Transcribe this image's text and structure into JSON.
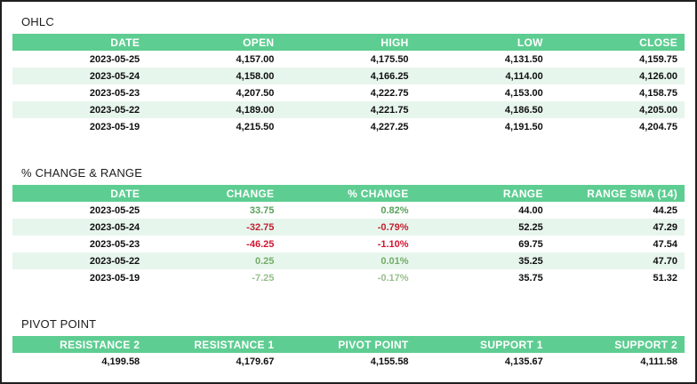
{
  "colors": {
    "header_bg": "#5ecd92",
    "header_text": "#ffffff",
    "row_alt_bg": "#e7f6ed",
    "row_bg": "#ffffff",
    "cell_text": "#0f0f0f",
    "title_text": "#1c1c1c",
    "page_border": "#1f1f1f",
    "positive_text": "#55a25a",
    "negative_text": "#d01630"
  },
  "sections": [
    {
      "id": "ohlc",
      "title": "OHLC",
      "columns": [
        "DATE",
        "OPEN",
        "HIGH",
        "LOW",
        "CLOSE"
      ],
      "rows": [
        {
          "cells": [
            {
              "text": "2023-05-25"
            },
            {
              "text": "4,157.00"
            },
            {
              "text": "4,175.50"
            },
            {
              "text": "4,131.50"
            },
            {
              "text": "4,159.75"
            }
          ]
        },
        {
          "cells": [
            {
              "text": "2023-05-24"
            },
            {
              "text": "4,158.00"
            },
            {
              "text": "4,166.25"
            },
            {
              "text": "4,114.00"
            },
            {
              "text": "4,126.00"
            }
          ]
        },
        {
          "cells": [
            {
              "text": "2023-05-23"
            },
            {
              "text": "4,207.50"
            },
            {
              "text": "4,222.75"
            },
            {
              "text": "4,153.00"
            },
            {
              "text": "4,158.75"
            }
          ]
        },
        {
          "cells": [
            {
              "text": "2023-05-22"
            },
            {
              "text": "4,189.00"
            },
            {
              "text": "4,221.75"
            },
            {
              "text": "4,186.50"
            },
            {
              "text": "4,205.00"
            }
          ]
        },
        {
          "cells": [
            {
              "text": "2023-05-19"
            },
            {
              "text": "4,215.50"
            },
            {
              "text": "4,227.25"
            },
            {
              "text": "4,191.50"
            },
            {
              "text": "4,204.75"
            }
          ]
        }
      ]
    },
    {
      "id": "change-range",
      "title": "% CHANGE & RANGE",
      "columns": [
        "DATE",
        "CHANGE",
        "% CHANGE",
        "RANGE",
        "RANGE SMA (14)"
      ],
      "rows": [
        {
          "cells": [
            {
              "text": "2023-05-25"
            },
            {
              "text": "33.75",
              "color": "#55a25a"
            },
            {
              "text": "0.82%",
              "color": "#55a25a"
            },
            {
              "text": "44.00"
            },
            {
              "text": "44.25"
            }
          ]
        },
        {
          "cells": [
            {
              "text": "2023-05-24"
            },
            {
              "text": "-32.75",
              "color": "#c32030"
            },
            {
              "text": "-0.79%",
              "color": "#c32030"
            },
            {
              "text": "52.25"
            },
            {
              "text": "47.29"
            }
          ]
        },
        {
          "cells": [
            {
              "text": "2023-05-23"
            },
            {
              "text": "-46.25",
              "color": "#d01630"
            },
            {
              "text": "-1.10%",
              "color": "#d01630"
            },
            {
              "text": "69.75"
            },
            {
              "text": "47.54"
            }
          ]
        },
        {
          "cells": [
            {
              "text": "2023-05-22"
            },
            {
              "text": "0.25",
              "color": "#72ad68"
            },
            {
              "text": "0.01%",
              "color": "#72ad68"
            },
            {
              "text": "35.25"
            },
            {
              "text": "47.70"
            }
          ]
        },
        {
          "cells": [
            {
              "text": "2023-05-19"
            },
            {
              "text": "-7.25",
              "color": "#97bf8c"
            },
            {
              "text": "-0.17%",
              "color": "#97bf8c"
            },
            {
              "text": "35.75"
            },
            {
              "text": "51.32"
            }
          ]
        }
      ]
    },
    {
      "id": "pivot-point",
      "title": "PIVOT POINT",
      "columns": [
        "RESISTANCE 2",
        "RESISTANCE 1",
        "PIVOT POINT",
        "SUPPORT 1",
        "SUPPORT 2"
      ],
      "rows": [
        {
          "cells": [
            {
              "text": "4,199.58"
            },
            {
              "text": "4,179.67"
            },
            {
              "text": "4,155.58"
            },
            {
              "text": "4,135.67"
            },
            {
              "text": "4,111.58"
            }
          ]
        }
      ]
    }
  ]
}
